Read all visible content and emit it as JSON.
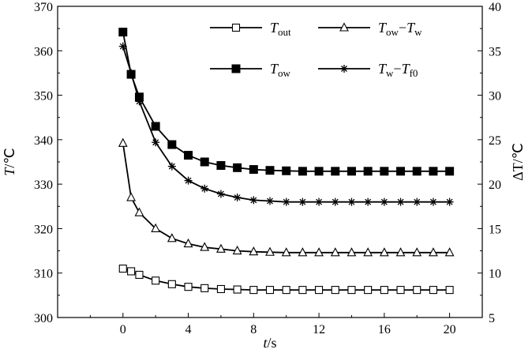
{
  "chart_data": {
    "type": "line",
    "title": "",
    "x": {
      "label_var": "t",
      "label_unit": "s",
      "range": [
        -4,
        22
      ],
      "ticks": [
        "0",
        "4",
        "8",
        "12",
        "16",
        "20"
      ]
    },
    "y_left": {
      "label_var": "T",
      "label_unit": "℃",
      "range": [
        300,
        370
      ],
      "ticks": [
        "300",
        "310",
        "320",
        "330",
        "340",
        "350",
        "360",
        "370"
      ]
    },
    "y_right": {
      "label_var": "ΔT",
      "label_unit": "℃",
      "range": [
        5,
        40
      ],
      "ticks": [
        "5",
        "10",
        "15",
        "20",
        "25",
        "30",
        "35",
        "40"
      ]
    },
    "grid": false,
    "legend_position": "top-right",
    "series": [
      {
        "key": "T_out",
        "legend_main": "T",
        "legend_sub": "out",
        "axis": "left",
        "marker": "open-square",
        "x": [
          0,
          0.5,
          1,
          2,
          3,
          4,
          5,
          6,
          7,
          8,
          9,
          10,
          11,
          12,
          13,
          14,
          15,
          16,
          17,
          18,
          19,
          20
        ],
        "y": [
          311.0,
          310.4,
          309.6,
          308.3,
          307.5,
          306.9,
          306.6,
          306.4,
          306.3,
          306.2,
          306.2,
          306.2,
          306.2,
          306.2,
          306.2,
          306.2,
          306.2,
          306.2,
          306.2,
          306.2,
          306.2,
          306.2
        ]
      },
      {
        "key": "T_ow",
        "legend_main": "T",
        "legend_sub": "ow",
        "axis": "left",
        "marker": "filled-square",
        "x": [
          0,
          0.5,
          1,
          2,
          3,
          4,
          5,
          6,
          7,
          8,
          9,
          10,
          11,
          12,
          13,
          14,
          15,
          16,
          17,
          18,
          19,
          20
        ],
        "y": [
          364.2,
          354.7,
          349.6,
          343.0,
          338.9,
          336.5,
          335.0,
          334.2,
          333.7,
          333.3,
          333.1,
          333.0,
          332.9,
          332.9,
          332.9,
          332.9,
          332.9,
          332.9,
          332.9,
          332.9,
          332.9,
          332.9
        ]
      },
      {
        "key": "Tow_minus_Tw",
        "legend_main": "T",
        "legend_sub": "ow",
        "legend_main2": "T",
        "legend_sub2": "w",
        "axis": "right",
        "marker": "open-triangle",
        "x": [
          0,
          0.5,
          1,
          2,
          3,
          4,
          5,
          6,
          7,
          8,
          9,
          10,
          11,
          12,
          13,
          14,
          15,
          16,
          17,
          18,
          19,
          20
        ],
        "y": [
          24.6,
          18.5,
          16.8,
          15.0,
          13.9,
          13.3,
          12.9,
          12.7,
          12.5,
          12.4,
          12.35,
          12.3,
          12.3,
          12.3,
          12.3,
          12.3,
          12.3,
          12.3,
          12.3,
          12.3,
          12.3,
          12.3
        ]
      },
      {
        "key": "Tw_minus_Tf0",
        "legend_main": "T",
        "legend_sub": "w",
        "legend_main2": "T",
        "legend_sub2": "f0",
        "axis": "right",
        "marker": "asterisk",
        "x": [
          0,
          0.5,
          1,
          2,
          3,
          4,
          5,
          6,
          7,
          8,
          9,
          10,
          11,
          12,
          13,
          14,
          15,
          16,
          17,
          18,
          19,
          20
        ],
        "y": [
          35.5,
          32.5,
          29.3,
          24.7,
          22.0,
          20.4,
          19.5,
          18.9,
          18.5,
          18.2,
          18.1,
          18.0,
          18.0,
          18.0,
          18.0,
          18.0,
          18.0,
          18.0,
          18.0,
          18.0,
          18.0,
          18.0
        ]
      }
    ]
  }
}
